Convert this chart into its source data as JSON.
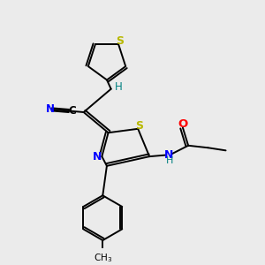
{
  "background_color": "#ebebeb",
  "figsize": [
    3.0,
    3.0
  ],
  "dpi": 100,
  "atom_colors": {
    "S": "#b8b800",
    "N": "#0000ff",
    "O": "#ff0000",
    "C": "#000000",
    "H": "#008080"
  },
  "lw": 1.4
}
